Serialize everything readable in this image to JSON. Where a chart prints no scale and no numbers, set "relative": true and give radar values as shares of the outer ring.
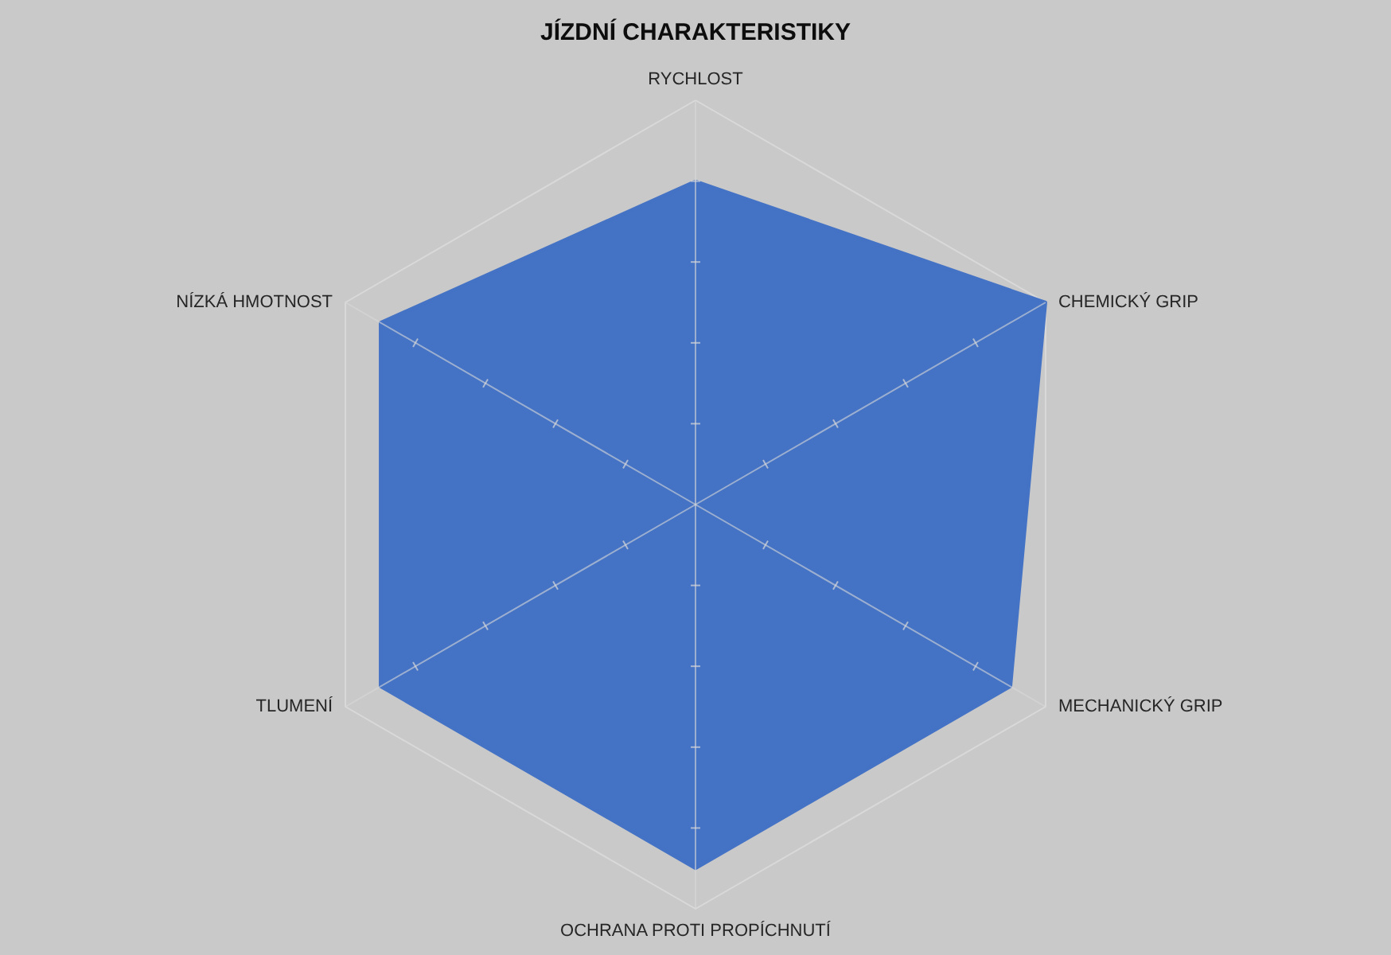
{
  "chart_data": {
    "type": "radar",
    "title": "JÍZDNÍ CHARAKTERISTIKY",
    "categories": [
      "RYCHLOST",
      "CHEMICKÝ GRIP",
      "MECHANICKÝ GRIP",
      "OCHRANA PROTI PROPÍCHNUTÍ",
      "TLUMENÍ",
      "NÍZKÁ HMOTNOST"
    ],
    "relative": true,
    "grid": true,
    "series": [
      {
        "color": "#4472c4",
        "values": [
          0.8,
          1.0,
          0.9,
          0.9,
          0.9,
          0.9
        ]
      }
    ]
  }
}
